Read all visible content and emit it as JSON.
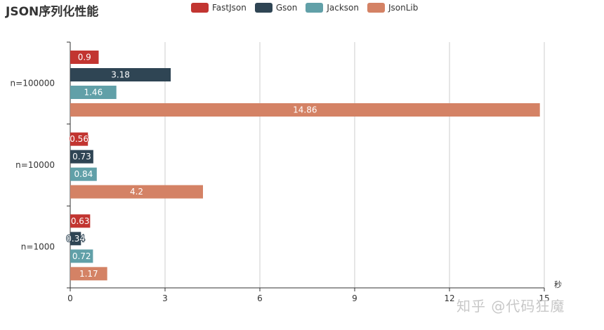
{
  "chart_data": {
    "type": "bar",
    "orientation": "horizontal",
    "title": "JSON序列化性能",
    "categories": [
      "n=100000",
      "n=10000",
      "n=1000"
    ],
    "series": [
      {
        "name": "FastJson",
        "color": "#c23531",
        "values": [
          0.9,
          0.56,
          0.63
        ]
      },
      {
        "name": "Gson",
        "color": "#2f4554",
        "values": [
          3.18,
          0.73,
          0.34
        ]
      },
      {
        "name": "Jackson",
        "color": "#61a0a8",
        "values": [
          1.46,
          0.84,
          0.72
        ]
      },
      {
        "name": "JsonLib",
        "color": "#d48265",
        "values": [
          14.86,
          4.2,
          1.17
        ]
      }
    ],
    "xlabel": "秒",
    "xlim": [
      0,
      15
    ],
    "xticks": [
      0,
      3,
      6,
      9,
      12,
      15
    ],
    "grid": true,
    "legend_position": "top-center"
  },
  "watermark": "知乎 @代码狂魔"
}
